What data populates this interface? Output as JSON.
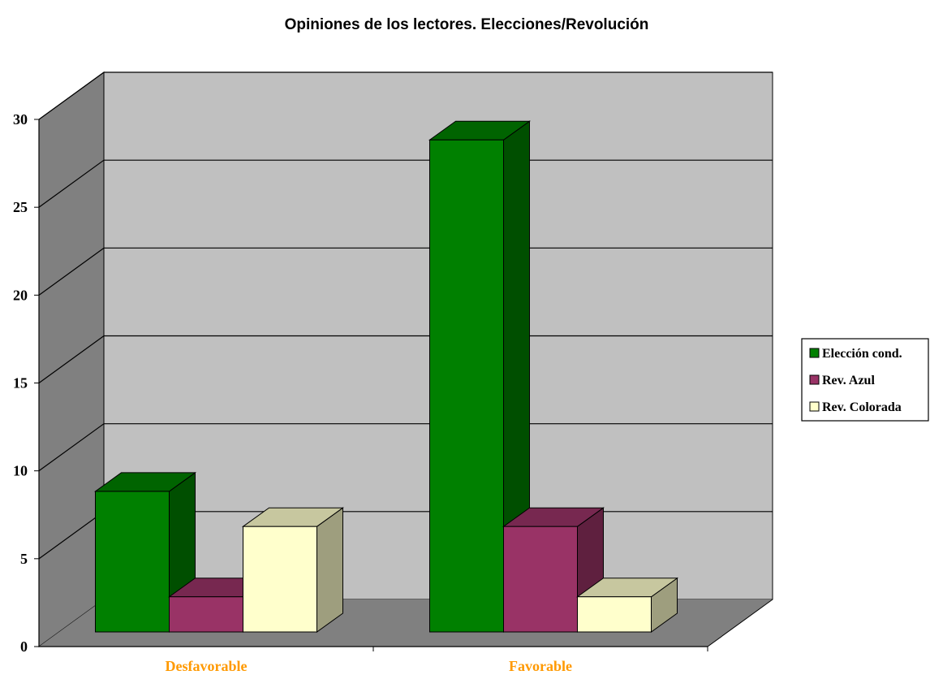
{
  "chart_data": {
    "type": "bar",
    "title": "Opiniones de los lectores. Elecciones/Revolución",
    "categories": [
      "Desfavorable",
      "Favorable"
    ],
    "series": [
      {
        "name": "Elección cond.",
        "values": [
          8,
          28
        ]
      },
      {
        "name": "Rev. Azul",
        "values": [
          2,
          6
        ]
      },
      {
        "name": "Rev. Colorada",
        "values": [
          6,
          2
        ]
      }
    ],
    "ylim": [
      0,
      30
    ],
    "yticks": [
      "0",
      "5",
      "10",
      "15",
      "20",
      "25",
      "30"
    ],
    "grid": true,
    "legend": "right",
    "three_d": true
  },
  "colors": {
    "series": [
      "#008000",
      "#993366",
      "#ffffcc"
    ],
    "category_label": "#ff9900",
    "wall": "#c0c0c0",
    "side_wall": "#808080",
    "floor": "#808080"
  }
}
